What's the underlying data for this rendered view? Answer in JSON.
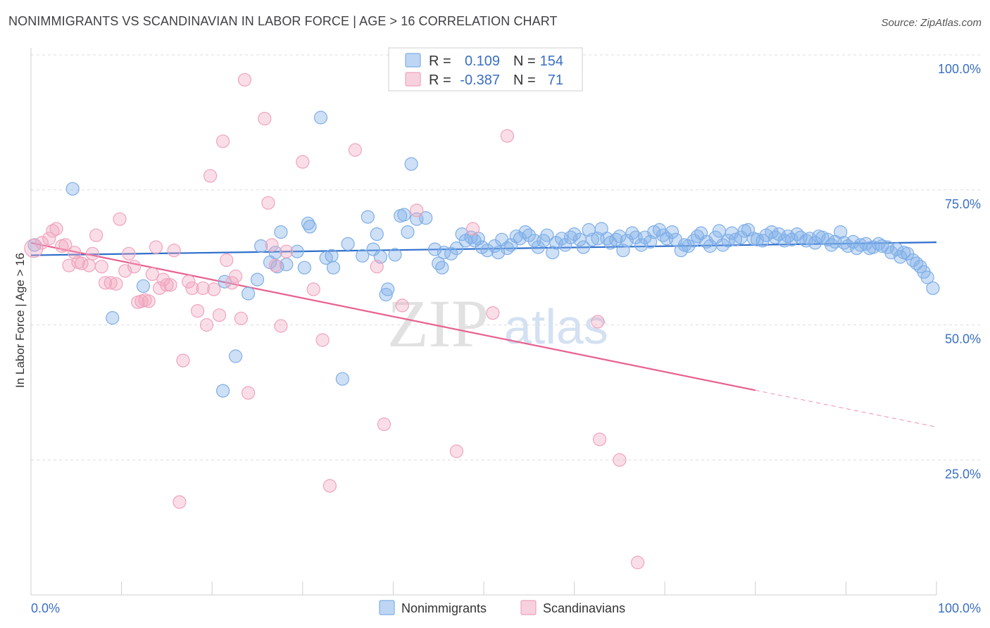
{
  "header": {
    "title": "NONIMMIGRANTS VS SCANDINAVIAN IN LABOR FORCE | AGE > 16 CORRELATION CHART",
    "source": "Source: ZipAtlas.com"
  },
  "watermark": {
    "zip": "ZIP",
    "atlas": "atlas"
  },
  "stats": [
    {
      "r_label": "R =",
      "r_value": "0.109",
      "n_label": "N =",
      "n_value": "154",
      "color": "#7eaee8"
    },
    {
      "r_label": "R =",
      "r_value": "-0.387",
      "n_label": "N =",
      "n_value": "71",
      "color": "#f0a3bd"
    }
  ],
  "chart_data": {
    "type": "scatter",
    "title": "NONIMMIGRANTS VS SCANDINAVIAN IN LABOR FORCE | AGE > 16 CORRELATION CHART",
    "xlabel": "",
    "ylabel": "In Labor Force | Age > 16",
    "xlim": [
      0,
      100
    ],
    "ylim": [
      0,
      100
    ],
    "x_tick_labels": [
      "0.0%",
      "100.0%"
    ],
    "y_ticks": [
      {
        "value": 25,
        "label": "25.0%"
      },
      {
        "value": 50,
        "label": "50.0%"
      },
      {
        "value": 75,
        "label": "75.0%"
      },
      {
        "value": 100,
        "label": "100.0%"
      }
    ],
    "grid": true,
    "legend_position": "bottom",
    "series": [
      {
        "name": "Nonimmigrants",
        "color": "#7eaee8",
        "line_color": "#2f6fcb",
        "trend": {
          "x0": 0,
          "y0": 62.9,
          "x1": 100,
          "y1": 65.3
        },
        "points": [
          [
            0.4,
            64.8
          ],
          [
            4.6,
            75.2
          ],
          [
            9.0,
            51.3
          ],
          [
            12.4,
            57.2
          ],
          [
            21.4,
            58.0
          ],
          [
            21.2,
            37.8
          ],
          [
            22.6,
            44.2
          ],
          [
            24.0,
            55.8
          ],
          [
            25.0,
            58.4
          ],
          [
            25.4,
            64.6
          ],
          [
            26.4,
            61.6
          ],
          [
            27.0,
            63.4
          ],
          [
            27.2,
            60.8
          ],
          [
            27.6,
            67.2
          ],
          [
            28.2,
            61.2
          ],
          [
            29.4,
            63.6
          ],
          [
            30.2,
            60.6
          ],
          [
            30.6,
            68.8
          ],
          [
            30.8,
            68.2
          ],
          [
            32.0,
            88.4
          ],
          [
            32.6,
            62.4
          ],
          [
            33.2,
            62.8
          ],
          [
            33.4,
            60.6
          ],
          [
            34.4,
            40.0
          ],
          [
            35.0,
            65.0
          ],
          [
            36.6,
            62.8
          ],
          [
            37.2,
            70.0
          ],
          [
            37.8,
            64.0
          ],
          [
            38.2,
            66.8
          ],
          [
            38.6,
            62.6
          ],
          [
            39.2,
            55.6
          ],
          [
            39.4,
            56.6
          ],
          [
            40.2,
            63.0
          ],
          [
            40.8,
            70.2
          ],
          [
            41.2,
            70.4
          ],
          [
            41.6,
            67.2
          ],
          [
            42.0,
            79.8
          ],
          [
            42.6,
            69.6
          ],
          [
            43.6,
            69.8
          ],
          [
            44.6,
            64.0
          ],
          [
            45.0,
            61.4
          ],
          [
            45.4,
            60.6
          ],
          [
            45.6,
            63.4
          ],
          [
            46.4,
            63.2
          ],
          [
            47.0,
            64.2
          ],
          [
            47.6,
            66.8
          ],
          [
            48.0,
            65.6
          ],
          [
            48.6,
            66.2
          ],
          [
            49.0,
            65.6
          ],
          [
            49.4,
            66.0
          ],
          [
            49.8,
            64.4
          ],
          [
            50.4,
            63.8
          ],
          [
            51.2,
            64.6
          ],
          [
            51.6,
            63.4
          ],
          [
            52.0,
            65.8
          ],
          [
            52.6,
            64.2
          ],
          [
            53.0,
            64.8
          ],
          [
            53.6,
            66.4
          ],
          [
            54.0,
            66.0
          ],
          [
            54.6,
            67.2
          ],
          [
            55.0,
            66.6
          ],
          [
            55.6,
            65.6
          ],
          [
            56.0,
            64.4
          ],
          [
            56.6,
            65.6
          ],
          [
            57.0,
            66.6
          ],
          [
            57.6,
            63.4
          ],
          [
            58.0,
            65.2
          ],
          [
            58.6,
            66.0
          ],
          [
            59.0,
            64.8
          ],
          [
            59.6,
            66.2
          ],
          [
            60.0,
            66.8
          ],
          [
            60.6,
            65.8
          ],
          [
            61.0,
            64.4
          ],
          [
            61.6,
            67.6
          ],
          [
            62.0,
            65.8
          ],
          [
            62.6,
            66.0
          ],
          [
            63.0,
            67.8
          ],
          [
            63.6,
            66.0
          ],
          [
            64.0,
            65.2
          ],
          [
            64.6,
            65.8
          ],
          [
            65.0,
            66.4
          ],
          [
            65.4,
            63.8
          ],
          [
            65.8,
            65.6
          ],
          [
            66.4,
            67.0
          ],
          [
            66.8,
            66.2
          ],
          [
            67.4,
            64.8
          ],
          [
            67.8,
            66.2
          ],
          [
            68.4,
            65.4
          ],
          [
            68.8,
            67.2
          ],
          [
            69.4,
            67.6
          ],
          [
            69.8,
            66.6
          ],
          [
            70.2,
            66.0
          ],
          [
            70.8,
            67.2
          ],
          [
            71.2,
            65.8
          ],
          [
            71.8,
            63.8
          ],
          [
            72.2,
            64.8
          ],
          [
            72.6,
            64.6
          ],
          [
            73.2,
            65.6
          ],
          [
            73.6,
            66.4
          ],
          [
            74.0,
            67.0
          ],
          [
            74.6,
            65.4
          ],
          [
            75.0,
            64.6
          ],
          [
            75.6,
            66.2
          ],
          [
            76.0,
            67.4
          ],
          [
            76.4,
            64.8
          ],
          [
            77.0,
            65.6
          ],
          [
            77.4,
            67.0
          ],
          [
            77.8,
            65.8
          ],
          [
            78.4,
            66.2
          ],
          [
            78.8,
            67.4
          ],
          [
            79.2,
            67.6
          ],
          [
            79.8,
            66.0
          ],
          [
            80.2,
            65.8
          ],
          [
            80.8,
            65.6
          ],
          [
            81.2,
            66.6
          ],
          [
            81.8,
            67.2
          ],
          [
            82.2,
            66.2
          ],
          [
            82.6,
            66.8
          ],
          [
            83.2,
            65.6
          ],
          [
            83.6,
            66.4
          ],
          [
            84.0,
            65.8
          ],
          [
            84.6,
            66.8
          ],
          [
            85.0,
            66.2
          ],
          [
            85.6,
            65.6
          ],
          [
            86.0,
            66.0
          ],
          [
            86.6,
            65.2
          ],
          [
            87.0,
            66.4
          ],
          [
            87.4,
            66.2
          ],
          [
            88.0,
            65.8
          ],
          [
            88.4,
            64.8
          ],
          [
            88.8,
            65.4
          ],
          [
            89.4,
            67.2
          ],
          [
            89.8,
            65.2
          ],
          [
            90.2,
            64.6
          ],
          [
            90.8,
            65.4
          ],
          [
            91.2,
            64.2
          ],
          [
            91.6,
            64.8
          ],
          [
            92.2,
            65.0
          ],
          [
            92.6,
            64.2
          ],
          [
            93.0,
            64.4
          ],
          [
            93.6,
            65.0
          ],
          [
            94.0,
            64.6
          ],
          [
            94.6,
            64.4
          ],
          [
            95.0,
            63.4
          ],
          [
            95.6,
            64.0
          ],
          [
            96.0,
            62.6
          ],
          [
            96.4,
            63.4
          ],
          [
            96.8,
            63.2
          ],
          [
            97.4,
            62.0
          ],
          [
            97.8,
            61.4
          ],
          [
            98.2,
            60.8
          ],
          [
            98.6,
            59.8
          ],
          [
            99.0,
            58.8
          ],
          [
            99.6,
            56.8
          ]
        ]
      },
      {
        "name": "Scandinavians",
        "color": "#f0a3bd",
        "line_color": "#e8608f",
        "trend": {
          "x0": 0,
          "y0": 65.2,
          "x1": 80,
          "y1": 37.9
        },
        "trend_ext": {
          "x0": 80,
          "y0": 37.9,
          "x1": 100,
          "y1": 31.1
        },
        "points": [
          [
            0.3,
            64.2
          ],
          [
            1.2,
            65.2
          ],
          [
            2.0,
            66.0
          ],
          [
            2.4,
            67.4
          ],
          [
            2.8,
            67.8
          ],
          [
            3.4,
            64.6
          ],
          [
            3.8,
            64.8
          ],
          [
            4.2,
            61.0
          ],
          [
            4.8,
            63.4
          ],
          [
            5.2,
            61.6
          ],
          [
            5.6,
            61.4
          ],
          [
            6.4,
            61.0
          ],
          [
            6.8,
            63.2
          ],
          [
            7.2,
            66.6
          ],
          [
            7.8,
            60.8
          ],
          [
            8.2,
            57.8
          ],
          [
            8.8,
            57.8
          ],
          [
            9.4,
            57.6
          ],
          [
            9.8,
            69.6
          ],
          [
            10.4,
            60.0
          ],
          [
            10.8,
            63.2
          ],
          [
            11.4,
            60.8
          ],
          [
            11.8,
            54.2
          ],
          [
            12.2,
            54.4
          ],
          [
            12.6,
            54.6
          ],
          [
            13.0,
            54.4
          ],
          [
            13.4,
            59.4
          ],
          [
            13.8,
            64.4
          ],
          [
            14.2,
            56.8
          ],
          [
            14.6,
            58.4
          ],
          [
            15.0,
            57.4
          ],
          [
            15.4,
            57.4
          ],
          [
            15.8,
            63.8
          ],
          [
            16.4,
            17.2
          ],
          [
            16.8,
            43.4
          ],
          [
            17.4,
            58.0
          ],
          [
            17.8,
            56.8
          ],
          [
            18.4,
            52.6
          ],
          [
            19.0,
            56.8
          ],
          [
            19.4,
            50.0
          ],
          [
            19.8,
            77.6
          ],
          [
            20.2,
            56.6
          ],
          [
            20.8,
            51.8
          ],
          [
            21.2,
            84.0
          ],
          [
            21.6,
            62.0
          ],
          [
            22.2,
            57.8
          ],
          [
            22.6,
            59.0
          ],
          [
            23.2,
            51.2
          ],
          [
            23.6,
            95.4
          ],
          [
            24.0,
            37.4
          ],
          [
            25.8,
            88.2
          ],
          [
            26.2,
            72.6
          ],
          [
            26.6,
            64.8
          ],
          [
            27.0,
            61.0
          ],
          [
            27.6,
            49.8
          ],
          [
            28.2,
            63.6
          ],
          [
            30.0,
            80.2
          ],
          [
            31.2,
            56.6
          ],
          [
            32.2,
            47.2
          ],
          [
            33.0,
            20.2
          ],
          [
            35.8,
            82.4
          ],
          [
            38.2,
            60.8
          ],
          [
            39.0,
            31.6
          ],
          [
            41.0,
            53.6
          ],
          [
            42.6,
            71.2
          ],
          [
            47.0,
            26.6
          ],
          [
            48.8,
            67.8
          ],
          [
            51.0,
            52.2
          ],
          [
            52.6,
            85.0
          ],
          [
            62.6,
            50.6
          ],
          [
            62.8,
            28.8
          ],
          [
            65.0,
            25.0
          ],
          [
            67.0,
            6.0
          ]
        ]
      }
    ]
  }
}
